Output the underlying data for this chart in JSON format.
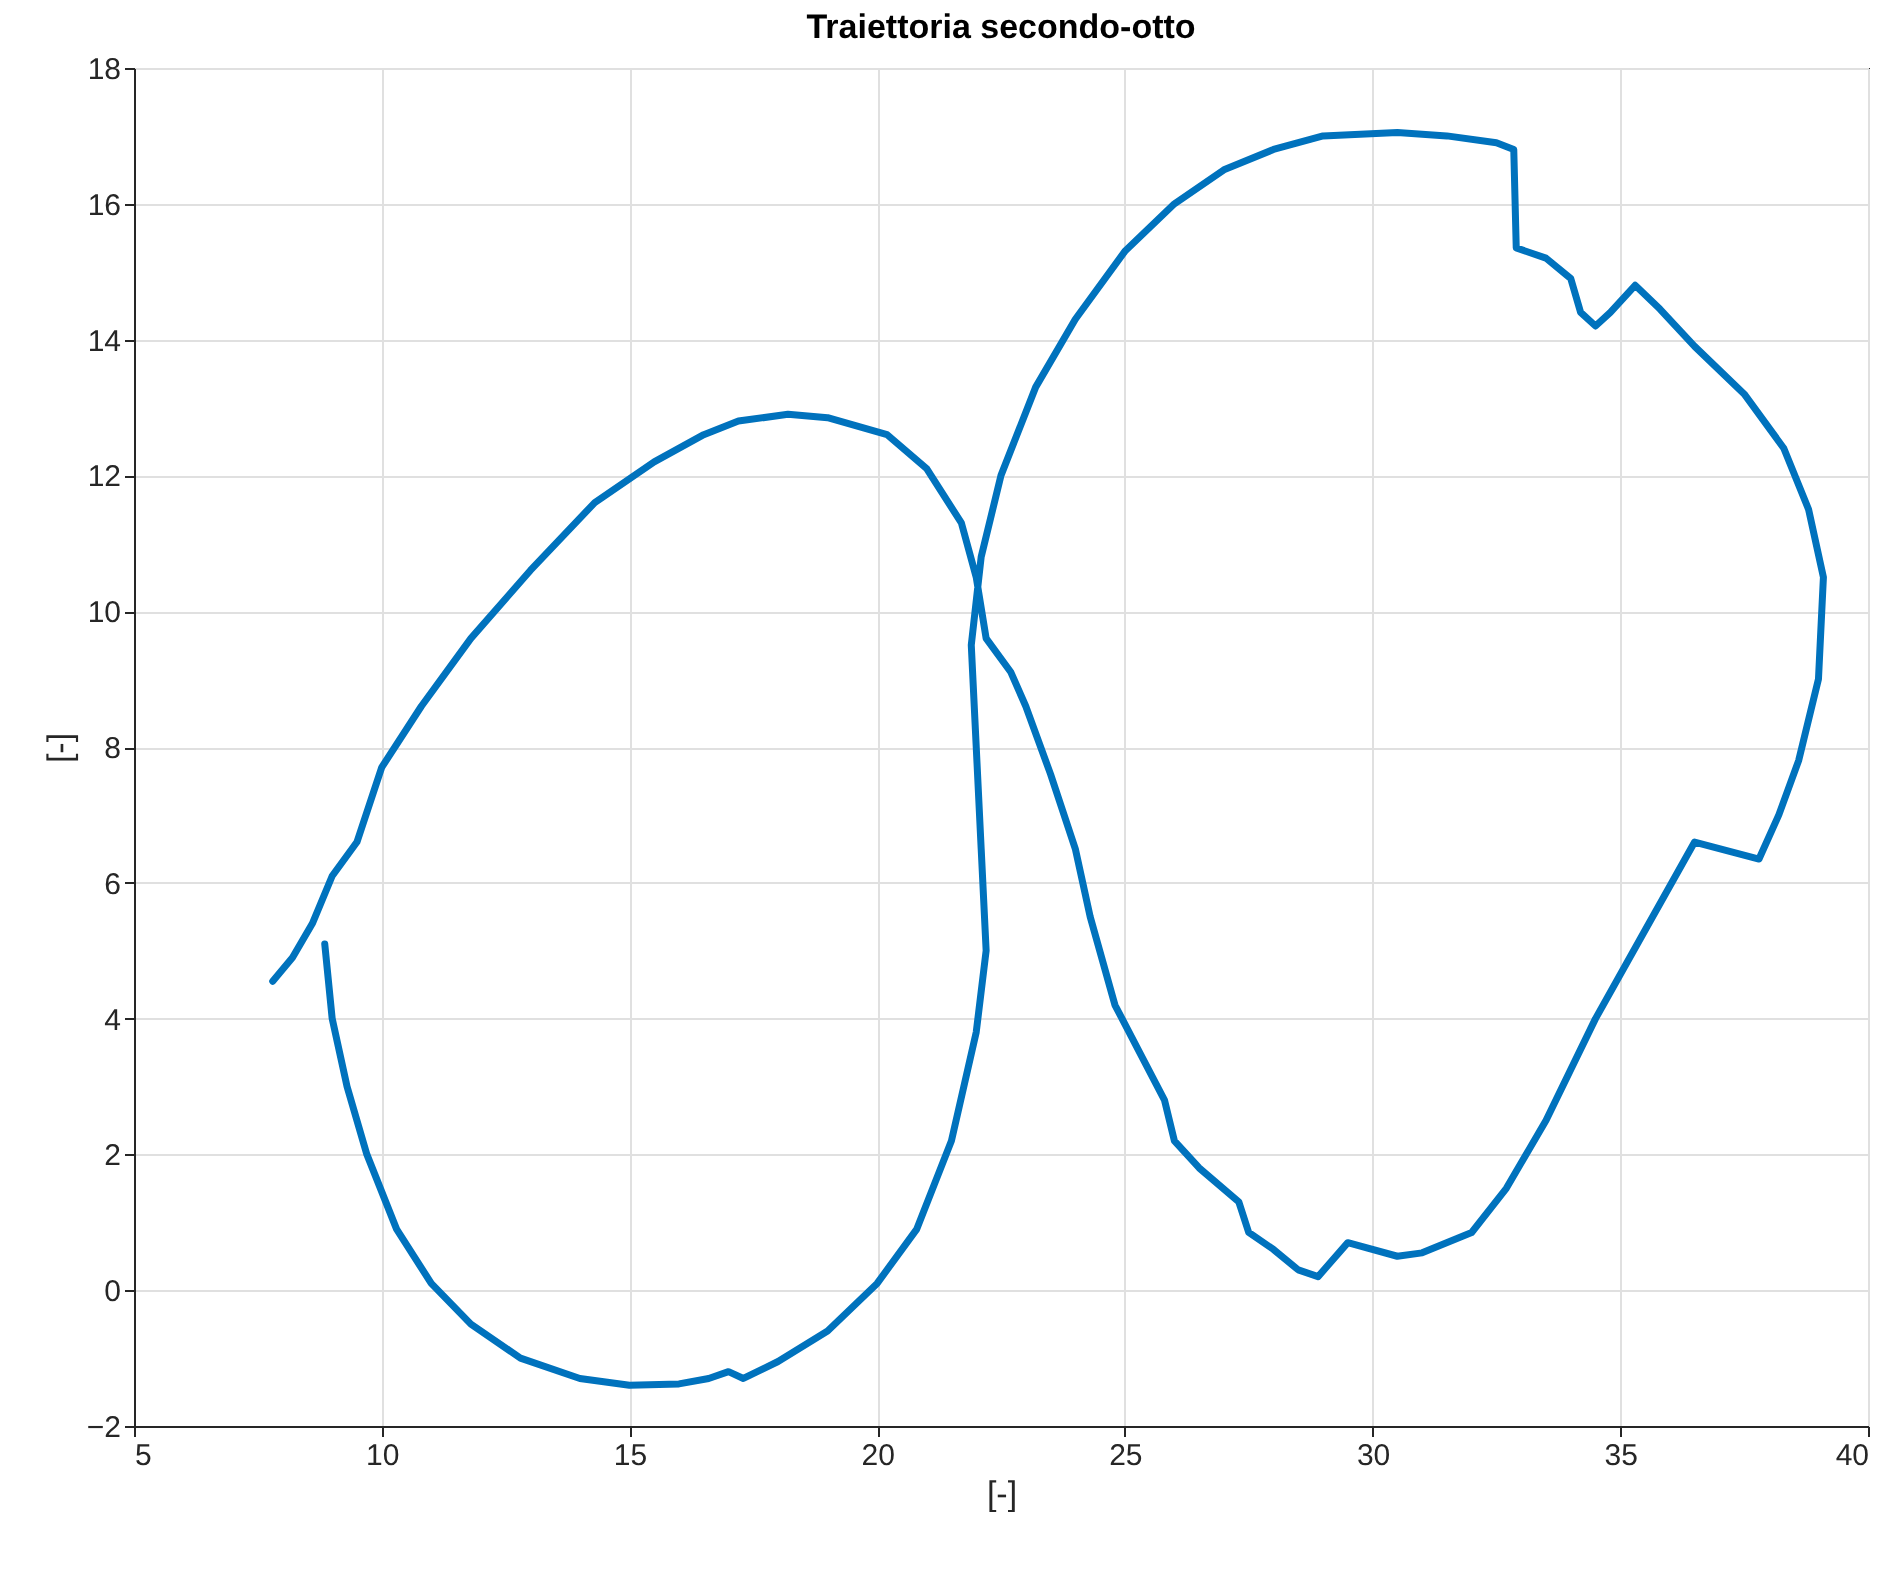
{
  "chart_data": {
    "type": "line",
    "title": "Traiettoria secondo-otto",
    "xlabel": "[-]",
    "ylabel": "[-]",
    "x": [
      8.85,
      9.0,
      9.3,
      9.7,
      10.3,
      11,
      11.8,
      12.8,
      14,
      15,
      16,
      16.6,
      17,
      17.3,
      18,
      19,
      20,
      20.8,
      21.5,
      22,
      22.2,
      22.1,
      22,
      21.9,
      22.1,
      22.5,
      23.2,
      24,
      25,
      26,
      27,
      28,
      29,
      30.5,
      31.5,
      32.5,
      32.85,
      32.9,
      33.5,
      34.0,
      34.2,
      34.5,
      34.8,
      35.3,
      35.8,
      36.5,
      37.5,
      38.3,
      38.8,
      39.1,
      39.0,
      38.6,
      38.2,
      37.8,
      36.5,
      35.5,
      34.5,
      33.5,
      32.7,
      32,
      31,
      30.5,
      29.5,
      28.9,
      28.5,
      28,
      27.5,
      27.3,
      26.5,
      26,
      25.8,
      25.3,
      24.8,
      24.3,
      24,
      23.5,
      23,
      22.7,
      22.2,
      22.0,
      21.7,
      21.0,
      20.2,
      19.0,
      18.2,
      17.2,
      16.5,
      15.5,
      14.3,
      13,
      11.8,
      10.8,
      10,
      9.5,
      9.0,
      8.6,
      8.2,
      7.8
    ],
    "values": [
      5.1,
      4.0,
      3.0,
      2.0,
      0.9,
      0.1,
      -0.5,
      -1.0,
      -1.3,
      -1.4,
      -1.38,
      -1.3,
      -1.2,
      -1.3,
      -1.05,
      -0.6,
      0.1,
      0.9,
      2.2,
      3.8,
      5,
      6.5,
      8,
      9.5,
      10.8,
      12.0,
      13.3,
      14.3,
      15.3,
      16.0,
      16.5,
      16.8,
      17.0,
      17.05,
      17.0,
      16.9,
      16.8,
      15.35,
      15.2,
      14.9,
      14.4,
      14.2,
      14.4,
      14.8,
      14.45,
      13.9,
      13.2,
      12.4,
      11.5,
      10.5,
      9.0,
      7.8,
      7.0,
      6.35,
      6.6,
      5.3,
      4.0,
      2.5,
      1.5,
      0.85,
      0.55,
      0.5,
      0.7,
      0.2,
      0.3,
      0.6,
      0.85,
      1.3,
      1.8,
      2.2,
      2.8,
      3.5,
      4.2,
      5.5,
      6.5,
      7.6,
      8.6,
      9.1,
      9.6,
      10.5,
      11.3,
      12.1,
      12.6,
      12.85,
      12.9,
      12.8,
      12.6,
      12.2,
      11.6,
      10.6,
      9.6,
      8.6,
      7.7,
      6.6,
      6.1,
      5.4,
      4.9,
      4.55
    ],
    "color": "#0072bd",
    "xlim": [
      5,
      40
    ],
    "xticks": [
      5,
      10,
      15,
      20,
      25,
      30,
      35,
      40
    ],
    "ylim": [
      -2,
      18
    ],
    "yticks": [
      -2,
      0,
      2,
      4,
      6,
      8,
      10,
      12,
      14,
      16,
      18
    ],
    "grid": true,
    "line_style": "solid"
  }
}
